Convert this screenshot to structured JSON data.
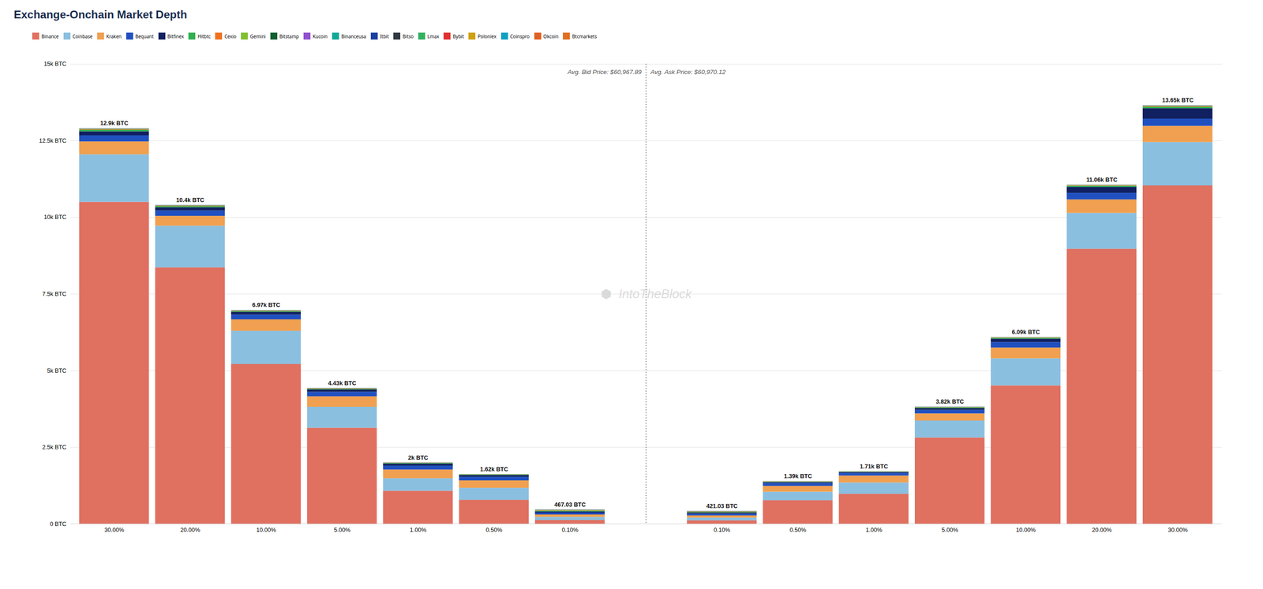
{
  "chart_data": {
    "type": "bar",
    "title": "Exchange-Onchain Market Depth",
    "stacked": true,
    "grid": true,
    "data_labels": true,
    "categories": [
      "30.00%",
      "20.00%",
      "10.00%",
      "5.00%",
      "1.00%",
      "0.50%",
      "0.10%",
      null,
      "0.10%",
      "0.50%",
      "1.00%",
      "5.00%",
      "10.00%",
      "20.00%",
      "30.00%"
    ],
    "series": [
      {
        "name": "Binance",
        "color": "#e07060",
        "values": [
          10500,
          8359.66,
          5210.3,
          3129.36,
          1073.69,
          779.31,
          120.52,
          null,
          108.65,
          765.31,
          974.91,
          2811.68,
          4511.84,
          8968.88,
          11034.05
        ]
      },
      {
        "name": "Coinbase",
        "color": "#8bbfe0",
        "values": [
          1550,
          1360.87,
          1081.38,
          684.55,
          409.96,
          389.66,
          100.43,
          null,
          90.54,
          277.43,
          370.47,
          552.64,
          882.75,
          1169.85,
          1415.87
        ]
      },
      {
        "name": "Kraken",
        "color": "#f0a050",
        "values": [
          420,
          320.78,
          373.57,
          342.27,
          283.06,
          243.54,
          80.34,
          null,
          72.43,
          191.33,
          224.23,
          232.69,
          353.1,
          438.7,
          527.29
        ]
      },
      {
        "name": "Bequant",
        "color": "#2050c0",
        "values": [
          200,
          174.97,
          157.29,
          146.69,
          126.89,
          116.9,
          60.26,
          null,
          54.32,
          95.66,
          87.74,
          116.35,
          176.55,
          214.47,
          234.35
        ]
      },
      {
        "name": "Bitfinex",
        "color": "#102060",
        "values": [
          130,
          106.93,
          88.48,
          78.23,
          68.33,
          58.45,
          40.17,
          null,
          36.22,
          28.7,
          29.25,
          58.17,
          107.89,
          194.98,
          341.76
        ]
      },
      {
        "name": "Hitbtc",
        "color": "#30b050",
        "values": [
          50,
          38.88,
          29.49,
          24.45,
          19.52,
          17.53,
          25.11,
          null,
          22.63,
          17.22,
          11.7,
          24.24,
          29.43,
          39.0,
          48.82
        ]
      },
      {
        "name": "Cexio",
        "color": "#f07020",
        "values": [
          20,
          14.58,
          11.8,
          9.78,
          7.81,
          6.82,
          14.06,
          null,
          12.68,
          6.7,
          4.87,
          9.7,
          11.77,
          14.62,
          19.53
        ]
      },
      {
        "name": "Gemini",
        "color": "#80c030",
        "values": [
          10,
          7.78,
          5.9,
          4.89,
          3.9,
          2.92,
          8.03,
          null,
          7.24,
          2.87,
          2.92,
          4.85,
          5.89,
          7.8,
          9.76
        ]
      },
      {
        "name": "Bitstamp",
        "color": "#106030",
        "values": [
          8,
          5.83,
          4.92,
          3.91,
          2.93,
          1.95,
          5.02,
          null,
          4.53,
          1.91,
          1.95,
          3.88,
          4.9,
          4.87,
          7.81
        ]
      },
      {
        "name": "Kucoin",
        "color": "#9050d0",
        "values": [
          5,
          3.89,
          2.95,
          2.93,
          1.95,
          1.95,
          4.02,
          null,
          3.62,
          1.91,
          0.97,
          2.91,
          2.94,
          3.9,
          4.88
        ]
      },
      {
        "name": "Binanceusa",
        "color": "#10a898",
        "values": [
          3,
          1.94,
          1.97,
          0.98,
          0.98,
          0.97,
          3.01,
          null,
          2.72,
          0.96,
          0.97,
          1.94,
          1.96,
          1.95,
          2.93
        ]
      },
      {
        "name": "Itbit",
        "color": "#1840a0",
        "values": [
          2,
          1.94,
          0.98,
          0.98,
          0.98,
          0,
          2.01,
          null,
          1.81,
          0,
          0,
          0.97,
          0.98,
          0.97,
          1.95
        ]
      },
      {
        "name": "Bitso",
        "color": "#303840",
        "values": [
          1,
          0.97,
          0.98,
          0.98,
          0,
          0,
          2.01,
          null,
          1.81,
          0,
          0,
          0,
          0,
          0,
          0.98
        ]
      },
      {
        "name": "Lmax",
        "color": "#30b060",
        "values": [
          1,
          0.97,
          0,
          0,
          0,
          0,
          1.0,
          null,
          0.91,
          0,
          0,
          0,
          0,
          0,
          0
        ]
      },
      {
        "name": "Bybit",
        "color": "#e03030",
        "values": [
          0,
          0,
          0,
          0,
          0,
          0,
          1.0,
          null,
          0.91,
          0,
          0,
          0,
          0,
          0,
          0
        ]
      },
      {
        "name": "Poloniex",
        "color": "#d0a010",
        "values": [
          null,
          null,
          null,
          null,
          null,
          null,
          null,
          null,
          null,
          null,
          null,
          null,
          null,
          null,
          null
        ]
      },
      {
        "name": "Coinspro",
        "color": "#10a0c0",
        "values": [
          null,
          null,
          null,
          null,
          null,
          null,
          null,
          null,
          null,
          null,
          null,
          null,
          null,
          null,
          null
        ]
      },
      {
        "name": "Okcoin",
        "color": "#e06020",
        "values": [
          null,
          null,
          null,
          null,
          null,
          null,
          null,
          null,
          null,
          null,
          null,
          null,
          null,
          null,
          null
        ]
      },
      {
        "name": "Btcmarkets",
        "color": "#e07020",
        "values": [
          null,
          null,
          null,
          null,
          null,
          null,
          null,
          null,
          null,
          null,
          null,
          null,
          null,
          null,
          null
        ]
      }
    ],
    "totals": [
      12900,
      10400,
      6970,
      4430,
      2000,
      1620,
      467,
      null,
      421,
      1390,
      1710,
      3820,
      6090,
      11060,
      13650
    ],
    "total_labels": [
      "12.9k BTC",
      "10.4k BTC",
      "6.97k BTC",
      "4.43k BTC",
      "2k BTC",
      "1.62k BTC",
      "467.03 BTC",
      null,
      "421.03 BTC",
      "1.39k BTC",
      "1.71k BTC",
      "3.82k BTC",
      "6.09k BTC",
      "11.06k BTC",
      "13.65k BTC"
    ],
    "ylim": [
      0,
      15000
    ],
    "yticks": [
      {
        "value": 0,
        "label": "0 BTC"
      },
      {
        "value": 2500,
        "label": "2.5k BTC"
      },
      {
        "value": 5000,
        "label": "5k BTC"
      },
      {
        "value": 7500,
        "label": "7.5k BTC"
      },
      {
        "value": 10000,
        "label": "10k BTC"
      },
      {
        "value": 12500,
        "label": "12.5k BTC"
      },
      {
        "value": 15000,
        "label": "15k BTC"
      }
    ],
    "annotations": [
      "Avg. Bid Price: $60,967.89",
      "Avg. Ask Price: $60,970.12",
      "⬢  IntoTheBlock"
    ]
  }
}
